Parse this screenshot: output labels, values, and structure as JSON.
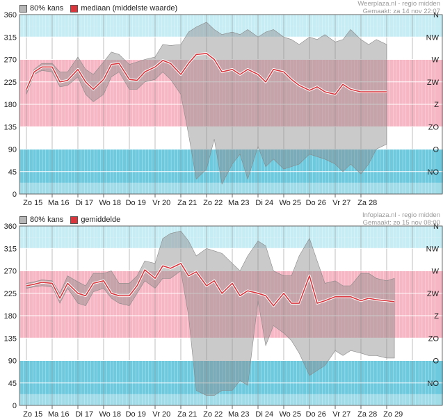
{
  "chart_data": [
    {
      "type": "area",
      "credit_source": "Weerplaza.nl - regio midden",
      "credit_made": "Gemaakt: za 14 nov 22:07",
      "legend": [
        {
          "label": "80% kans",
          "color": "#b7b7b7"
        },
        {
          "label": "mediaan (middelste waarde)",
          "color": "#d8353d"
        }
      ],
      "ylim": [
        0,
        360
      ],
      "yticks": [
        0,
        45,
        90,
        135,
        180,
        225,
        270,
        315,
        360
      ],
      "directions": [
        "N",
        "NW",
        "W",
        "ZW",
        "Z",
        "ZO",
        "O",
        "NO"
      ],
      "day_labels": [
        "Zo 15",
        "Ma 16",
        "Di 17",
        "Wo 18",
        "Do 19",
        "Vr 20",
        "Za 21",
        "Zo 22",
        "Ma 23",
        "Di 24",
        "Wo 25",
        "Do 26",
        "Vr 27",
        "Za 28"
      ],
      "series": [
        {
          "name": "mediaan (middelste waarde)",
          "type": "line",
          "color": "#d8353d",
          "x": [
            0,
            0.3,
            0.6,
            1,
            1.3,
            1.6,
            2,
            2.3,
            2.6,
            3,
            3.3,
            3.6,
            4,
            4.3,
            4.6,
            5,
            5.3,
            5.6,
            6,
            6.3,
            6.6,
            7,
            7.3,
            7.6,
            8,
            8.3,
            8.6,
            9,
            9.3,
            9.6,
            10,
            10.3,
            10.6,
            11,
            11.3,
            11.6,
            12,
            12.3,
            12.6,
            13,
            13.3,
            13.6,
            14
          ],
          "values": [
            210,
            245,
            255,
            255,
            225,
            228,
            250,
            225,
            210,
            230,
            260,
            262,
            230,
            228,
            245,
            255,
            268,
            262,
            240,
            262,
            280,
            282,
            270,
            245,
            250,
            240,
            250,
            240,
            225,
            250,
            245,
            230,
            218,
            208,
            215,
            205,
            200,
            220,
            210,
            205,
            205,
            205,
            205
          ]
        },
        {
          "name": "80% kans",
          "type": "band",
          "color": "#b7b7b7",
          "x": [
            0,
            0.3,
            0.6,
            1,
            1.3,
            1.6,
            2,
            2.3,
            2.6,
            3,
            3.3,
            3.6,
            4,
            4.3,
            4.6,
            5,
            5.3,
            5.6,
            6,
            6.3,
            6.6,
            7,
            7.3,
            7.6,
            8,
            8.3,
            8.6,
            9,
            9.3,
            9.6,
            10,
            10.3,
            10.6,
            11,
            11.3,
            11.6,
            12,
            12.3,
            12.6,
            13,
            13.3,
            13.6,
            14
          ],
          "high": [
            215,
            250,
            262,
            262,
            245,
            245,
            275,
            250,
            240,
            265,
            285,
            280,
            260,
            265,
            270,
            275,
            300,
            298,
            300,
            325,
            335,
            345,
            330,
            320,
            325,
            320,
            330,
            315,
            325,
            330,
            315,
            310,
            300,
            315,
            310,
            320,
            305,
            310,
            330,
            310,
            300,
            310,
            300
          ],
          "low": [
            200,
            240,
            248,
            245,
            215,
            218,
            235,
            200,
            185,
            200,
            235,
            245,
            210,
            210,
            225,
            230,
            245,
            230,
            200,
            120,
            30,
            50,
            110,
            20,
            60,
            80,
            30,
            95,
            55,
            70,
            50,
            55,
            60,
            80,
            75,
            70,
            60,
            45,
            60,
            40,
            60,
            90,
            100
          ]
        }
      ]
    },
    {
      "type": "area",
      "credit_source": "Infoplaza.nl - regio midden",
      "credit_made": "Gemaakt: zo 15 nov 08:00",
      "legend": [
        {
          "label": "80% kans",
          "color": "#b7b7b7"
        },
        {
          "label": "gemiddelde",
          "color": "#d8353d"
        }
      ],
      "ylim": [
        0,
        360
      ],
      "yticks": [
        0,
        45,
        90,
        135,
        180,
        225,
        270,
        315,
        360
      ],
      "directions": [
        "N",
        "NW",
        "W",
        "ZW",
        "Z",
        "ZO",
        "O",
        "NO"
      ],
      "day_labels": [
        "Zo 15",
        "Ma 16",
        "Di 17",
        "Wo 18",
        "Do 19",
        "Vr 20",
        "Za 21",
        "Zo 22",
        "Ma 23",
        "Di 24",
        "Wo 25",
        "Do 26",
        "Vr 27",
        "Za 28",
        "Zo 29"
      ],
      "series": [
        {
          "name": "gemiddelde",
          "type": "line",
          "color": "#d8353d",
          "x": [
            0,
            0.3,
            0.6,
            1,
            1.3,
            1.6,
            2,
            2.3,
            2.6,
            3,
            3.3,
            3.6,
            4,
            4.3,
            4.6,
            5,
            5.3,
            5.6,
            6,
            6.3,
            6.6,
            7,
            7.3,
            7.6,
            8,
            8.3,
            8.6,
            9,
            9.3,
            9.6,
            10,
            10.3,
            10.6,
            11,
            11.3,
            11.6,
            12,
            12.3,
            12.6,
            13,
            13.3,
            13.6,
            14,
            14.3
          ],
          "values": [
            240,
            243,
            247,
            245,
            215,
            245,
            225,
            220,
            245,
            250,
            225,
            220,
            220,
            240,
            272,
            255,
            280,
            275,
            285,
            260,
            268,
            240,
            250,
            225,
            245,
            220,
            230,
            225,
            220,
            200,
            225,
            205,
            205,
            260,
            205,
            210,
            218,
            218,
            218,
            210,
            215,
            212,
            210,
            208
          ]
        },
        {
          "name": "80% kans",
          "type": "band",
          "color": "#b7b7b7",
          "x": [
            0,
            0.3,
            0.6,
            1,
            1.3,
            1.6,
            2,
            2.3,
            2.6,
            3,
            3.3,
            3.6,
            4,
            4.3,
            4.6,
            5,
            5.3,
            5.6,
            6,
            6.3,
            6.6,
            7,
            7.3,
            7.6,
            8,
            8.3,
            8.6,
            9,
            9.3,
            9.6,
            10,
            10.3,
            10.6,
            11,
            11.3,
            11.6,
            12,
            12.3,
            12.6,
            13,
            13.3,
            13.6,
            14,
            14.3
          ],
          "high": [
            245,
            248,
            252,
            250,
            225,
            260,
            248,
            240,
            265,
            265,
            270,
            245,
            245,
            260,
            290,
            285,
            335,
            345,
            350,
            330,
            300,
            315,
            310,
            305,
            285,
            270,
            300,
            330,
            320,
            270,
            260,
            260,
            300,
            335,
            290,
            245,
            250,
            240,
            240,
            265,
            265,
            255,
            250,
            255
          ],
          "low": [
            235,
            238,
            240,
            238,
            205,
            235,
            205,
            200,
            228,
            235,
            215,
            205,
            200,
            225,
            250,
            235,
            255,
            255,
            270,
            180,
            30,
            20,
            20,
            30,
            30,
            50,
            40,
            210,
            120,
            160,
            145,
            130,
            105,
            60,
            70,
            80,
            110,
            100,
            110,
            105,
            100,
            100,
            95,
            95
          ]
        }
      ]
    }
  ]
}
